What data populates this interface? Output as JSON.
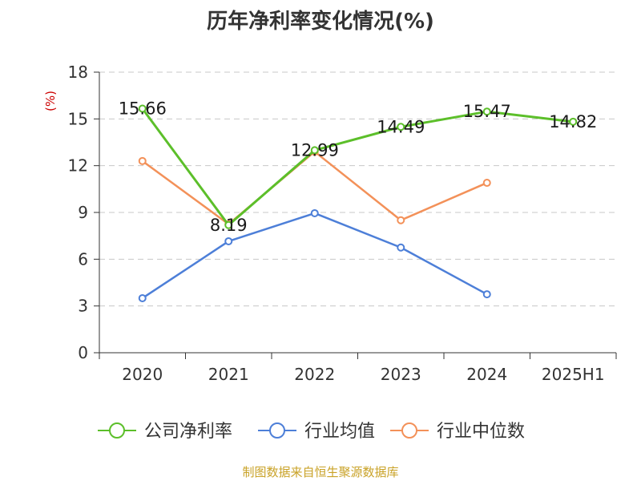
{
  "chart_data": {
    "type": "line",
    "title": "历年净利率变化情况(%)",
    "ylabel": "(%)",
    "xlabel": "",
    "categories": [
      "2020",
      "2021",
      "2022",
      "2023",
      "2024",
      "2025H1"
    ],
    "ylim": [
      0,
      18
    ],
    "yticks": [
      0,
      3,
      6,
      9,
      12,
      15,
      18
    ],
    "grid": true,
    "legend_position": "bottom",
    "series": [
      {
        "name": "公司净利率",
        "color": "#5cbf2a",
        "values": [
          15.66,
          8.19,
          12.99,
          14.49,
          15.47,
          14.82
        ],
        "labels": [
          "15.66",
          "8.19",
          "12.99",
          "14.49",
          "15.47",
          "14.82"
        ]
      },
      {
        "name": "行业均值",
        "color": "#4d7fd8",
        "values": [
          3.5,
          7.15,
          8.95,
          6.75,
          3.75,
          null
        ]
      },
      {
        "name": "行业中位数",
        "color": "#f39159",
        "values": [
          12.3,
          8.25,
          12.9,
          8.5,
          10.9,
          null
        ]
      }
    ]
  },
  "footer": {
    "source": "制图数据来自恒生聚源数据库"
  }
}
